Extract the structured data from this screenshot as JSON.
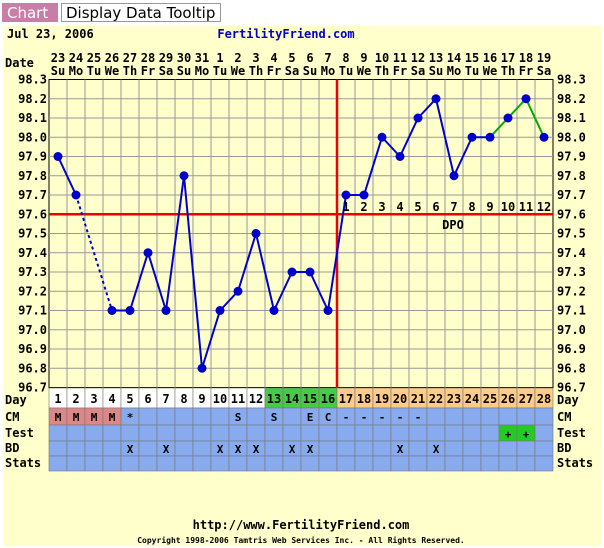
{
  "tabs": [
    {
      "label": "Chart",
      "active": true
    },
    {
      "label": "Display Data Tooltip",
      "active": false
    }
  ],
  "header": {
    "date": "Jul 23, 2006",
    "site": "FertilityFriend.com"
  },
  "footer": {
    "url": "http://www.FertilityFriend.com",
    "copyright": "Copyright 1998-2006 Tamtris Web Services Inc. - All Rights Reserved."
  },
  "colors": {
    "temp_line": "#0000cc",
    "projection_line": "#00aa00",
    "coverline": "#ee0000",
    "ovulation_line": "#ee0000",
    "plot_background": "#ffffcc",
    "grid": "#999999",
    "row_background": "#88aaee",
    "day_menstrual": "#ffffff",
    "day_fertile": "#44cc44",
    "day_luteal": "#ffcc88",
    "cm_menstrual": "#dd8888",
    "test_positive": "#22cc22"
  },
  "chart_data": {
    "type": "line",
    "title": "",
    "dates": [
      "23",
      "24",
      "25",
      "26",
      "27",
      "28",
      "29",
      "30",
      "31",
      "1",
      "2",
      "3",
      "4",
      "5",
      "6",
      "7",
      "8",
      "9",
      "10",
      "11",
      "12",
      "13",
      "14",
      "15",
      "16",
      "17",
      "18",
      "19"
    ],
    "weekdays": [
      "Su",
      "Mo",
      "Tu",
      "We",
      "Th",
      "Fr",
      "Sa",
      "Su",
      "Mo",
      "Tu",
      "We",
      "Th",
      "Fr",
      "Sa",
      "Su",
      "Mo",
      "Tu",
      "We",
      "Th",
      "Fr",
      "Sa",
      "Su",
      "Mo",
      "Tu",
      "We",
      "Th",
      "Fr",
      "Sa"
    ],
    "cycle_days": [
      "1",
      "2",
      "3",
      "4",
      "5",
      "6",
      "7",
      "8",
      "9",
      "10",
      "11",
      "12",
      "13",
      "14",
      "15",
      "16",
      "17",
      "18",
      "19",
      "20",
      "21",
      "22",
      "23",
      "24",
      "25",
      "26",
      "27",
      "28"
    ],
    "y_ticks": [
      "98.3",
      "98.2",
      "98.1",
      "98.0",
      "97.9",
      "97.8",
      "97.7",
      "97.6",
      "97.5",
      "97.4",
      "97.3",
      "97.2",
      "97.1",
      "97.0",
      "96.9",
      "96.8",
      "96.7"
    ],
    "ylim": [
      96.7,
      98.3
    ],
    "row_labels": {
      "date": "Date",
      "day": "Day",
      "cm": "CM",
      "test": "Test",
      "bd": "BD",
      "stats": "Stats"
    },
    "series": [
      {
        "values": [
          97.9,
          97.7,
          null,
          97.1,
          97.1,
          97.4,
          97.1,
          97.8,
          96.8,
          97.1,
          97.2,
          97.5,
          97.1,
          97.3,
          97.3,
          97.1,
          97.7,
          97.7,
          98.0,
          97.9,
          98.1,
          98.2,
          97.8,
          98.0,
          98.0,
          98.1,
          98.2,
          98.0
        ]
      }
    ],
    "projected_from_index": 24,
    "dotted_segment": [
      1,
      3
    ],
    "coverline": 97.6,
    "ovulation_day_index": 15,
    "dpo_label": "DPO",
    "dpo": [
      "1",
      "2",
      "3",
      "4",
      "5",
      "6",
      "7",
      "8",
      "9",
      "10",
      "11",
      "12"
    ],
    "dpo_start_index": 16,
    "cm": [
      "M",
      "M",
      "M",
      "M",
      "*",
      "",
      "",
      "",
      "",
      "",
      "S",
      "",
      "S",
      "",
      "E",
      "C",
      "-",
      "-",
      "-",
      "-",
      "-",
      "",
      "",
      "",
      "",
      "",
      "",
      ""
    ],
    "test": [
      "",
      "",
      "",
      "",
      "",
      "",
      "",
      "",
      "",
      "",
      "",
      "",
      "",
      "",
      "",
      "",
      "",
      "",
      "",
      "",
      "",
      "",
      "",
      "",
      "",
      "+",
      "+",
      ""
    ],
    "bd": [
      "",
      "",
      "",
      "",
      "X",
      "",
      "X",
      "",
      "",
      "X",
      "X",
      "X",
      "",
      "X",
      "X",
      "",
      "",
      "",
      "",
      "X",
      "",
      "X",
      "",
      "",
      "",
      "",
      "",
      ""
    ],
    "day_phase": [
      "m",
      "m",
      "m",
      "m",
      "n",
      "n",
      "n",
      "n",
      "n",
      "n",
      "n",
      "n",
      "f",
      "f",
      "f",
      "f",
      "l",
      "l",
      "l",
      "l",
      "l",
      "l",
      "l",
      "l",
      "l",
      "l",
      "l",
      "l"
    ]
  }
}
